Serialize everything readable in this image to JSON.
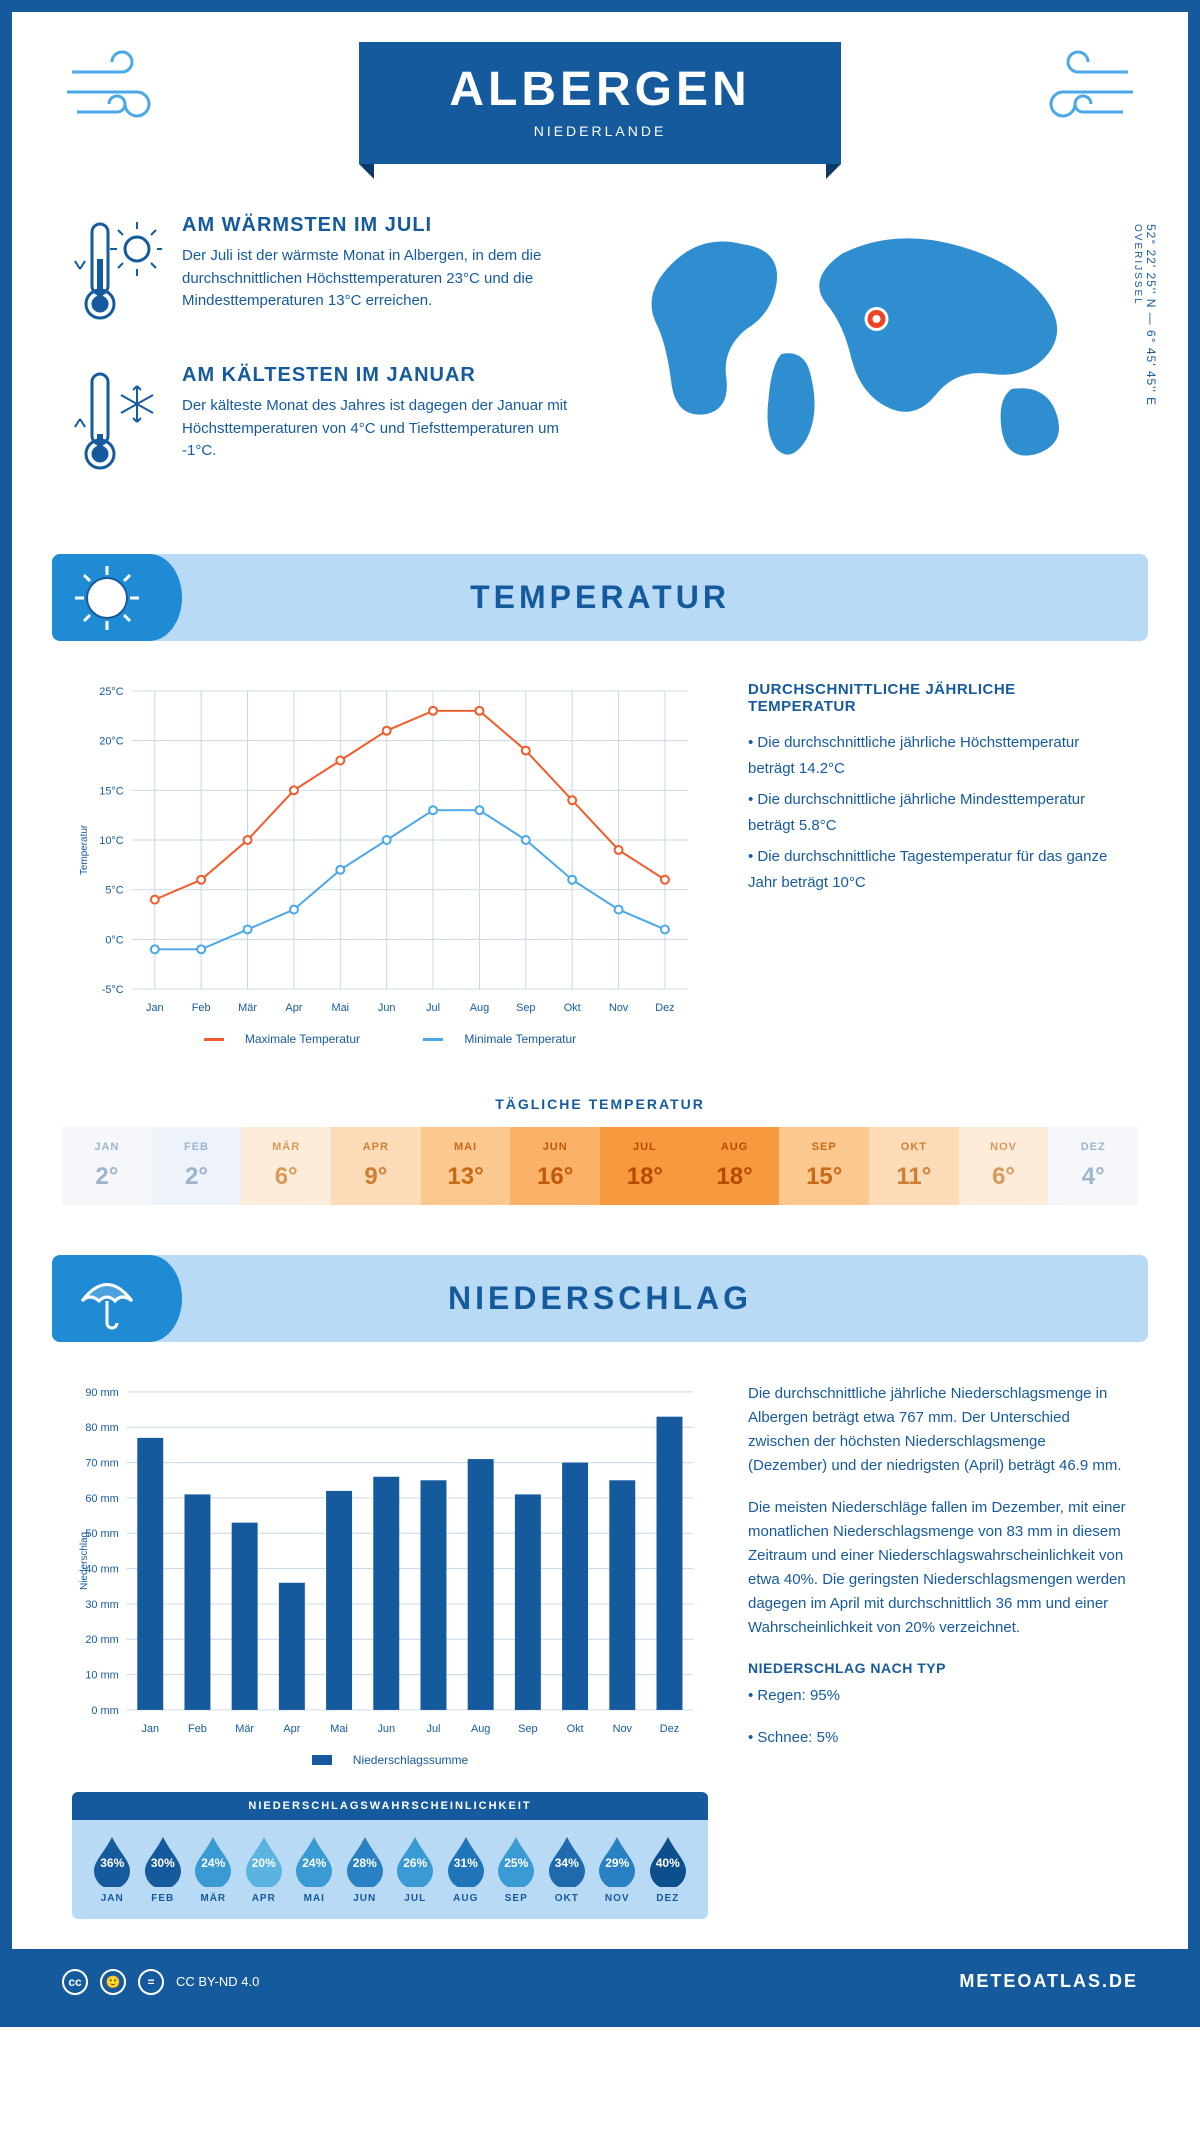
{
  "header": {
    "title": "ALBERGEN",
    "country": "NIEDERLANDE",
    "coords": "52° 22' 25'' N — 6° 45' 45'' E",
    "region": "OVERIJSSEL"
  },
  "intro": {
    "warm": {
      "title": "AM WÄRMSTEN IM JULI",
      "text": "Der Juli ist der wärmste Monat in Albergen, in dem die durchschnittlichen Höchsttemperaturen 23°C und die Mindesttemperaturen 13°C erreichen."
    },
    "cold": {
      "title": "AM KÄLTESTEN IM JANUAR",
      "text": "Der kälteste Monat des Jahres ist dagegen der Januar mit Höchsttemperaturen von 4°C und Tiefsttemperaturen um -1°C."
    }
  },
  "sections": {
    "temp": "TEMPERATUR",
    "precip": "NIEDERSCHLAG"
  },
  "temp_chart": {
    "type": "line",
    "months": [
      "Jan",
      "Feb",
      "Mär",
      "Apr",
      "Mai",
      "Jun",
      "Jul",
      "Aug",
      "Sep",
      "Okt",
      "Nov",
      "Dez"
    ],
    "max_series": {
      "label": "Maximale Temperatur",
      "color": "#f15a29",
      "values": [
        4,
        6,
        10,
        15,
        18,
        21,
        23,
        23,
        19,
        14,
        9,
        6
      ]
    },
    "min_series": {
      "label": "Minimale Temperatur",
      "color": "#4aa8e8",
      "values": [
        -1,
        -1,
        1,
        3,
        7,
        10,
        13,
        13,
        10,
        6,
        3,
        1
      ]
    },
    "ylabel": "Temperatur",
    "ylim": [
      -5,
      25
    ],
    "ytick_step": 5,
    "grid_color": "#c8d6e5",
    "line_width": 2,
    "marker": "circle",
    "marker_size": 4
  },
  "temp_info": {
    "title": "DURCHSCHNITTLICHE JÄHRLICHE TEMPERATUR",
    "b1": "• Die durchschnittliche jährliche Höchsttemperatur beträgt 14.2°C",
    "b2": "• Die durchschnittliche jährliche Mindesttemperatur beträgt 5.8°C",
    "b3": "• Die durchschnittliche Tagestemperatur für das ganze Jahr beträgt 10°C"
  },
  "daily": {
    "title": "TÄGLICHE TEMPERATUR",
    "months": [
      "JAN",
      "FEB",
      "MÄR",
      "APR",
      "MAI",
      "JUN",
      "JUL",
      "AUG",
      "SEP",
      "OKT",
      "NOV",
      "DEZ"
    ],
    "values": [
      "2°",
      "2°",
      "6°",
      "9°",
      "13°",
      "16°",
      "18°",
      "18°",
      "15°",
      "11°",
      "6°",
      "4°"
    ],
    "bg_colors": [
      "#f5f7fb",
      "#eef3fb",
      "#fdecd9",
      "#fcdcb8",
      "#fbc98f",
      "#f9b267",
      "#f79a3f",
      "#f79a3f",
      "#fbc98f",
      "#fcdcb8",
      "#fdecd9",
      "#f5f7fb"
    ],
    "text_colors": [
      "#9eb4cc",
      "#9eb4cc",
      "#d89a5a",
      "#cf7f33",
      "#c96a16",
      "#c05a0a",
      "#b84a00",
      "#b84a00",
      "#c96a16",
      "#cf7f33",
      "#d89a5a",
      "#9eb4cc"
    ]
  },
  "precip_chart": {
    "type": "bar",
    "months": [
      "Jan",
      "Feb",
      "Mär",
      "Apr",
      "Mai",
      "Jun",
      "Jul",
      "Aug",
      "Sep",
      "Okt",
      "Nov",
      "Dez"
    ],
    "values": [
      77,
      61,
      53,
      36,
      62,
      66,
      65,
      71,
      61,
      70,
      65,
      83
    ],
    "bar_color": "#165a9e",
    "ylabel": "Niederschlag",
    "ylim": [
      0,
      90
    ],
    "ytick_step": 10,
    "legend": "Niederschlagssumme",
    "grid_color": "#c8d6e5",
    "bar_width": 0.55
  },
  "precip_text": {
    "p1": "Die durchschnittliche jährliche Niederschlagsmenge in Albergen beträgt etwa 767 mm. Der Unterschied zwischen der höchsten Niederschlagsmenge (Dezember) und der niedrigsten (April) beträgt 46.9 mm.",
    "p2": "Die meisten Niederschläge fallen im Dezember, mit einer monatlichen Niederschlagsmenge von 83 mm in diesem Zeitraum und einer Niederschlagswahrscheinlichkeit von etwa 40%. Die geringsten Niederschlagsmengen werden dagegen im April mit durchschnittlich 36 mm und einer Wahrscheinlichkeit von 20% verzeichnet.",
    "type_title": "NIEDERSCHLAG NACH TYP",
    "type1": "• Regen: 95%",
    "type2": "• Schnee: 5%"
  },
  "prob": {
    "title": "NIEDERSCHLAGSWAHRSCHEINLICHKEIT",
    "months": [
      "JAN",
      "FEB",
      "MÄR",
      "APR",
      "MAI",
      "JUN",
      "JUL",
      "AUG",
      "SEP",
      "OKT",
      "NOV",
      "DEZ"
    ],
    "values": [
      "36%",
      "30%",
      "24%",
      "20%",
      "24%",
      "28%",
      "26%",
      "31%",
      "25%",
      "34%",
      "29%",
      "40%"
    ],
    "colors": [
      "#165a9e",
      "#165a9e",
      "#3a9bd4",
      "#5bb3e0",
      "#3a9bd4",
      "#2980c2",
      "#3a9bd4",
      "#2074b8",
      "#3a9bd4",
      "#1e6aac",
      "#2980c2",
      "#0d4e8c"
    ]
  },
  "footer": {
    "license": "CC BY-ND 4.0",
    "site": "METEOATLAS.DE"
  }
}
